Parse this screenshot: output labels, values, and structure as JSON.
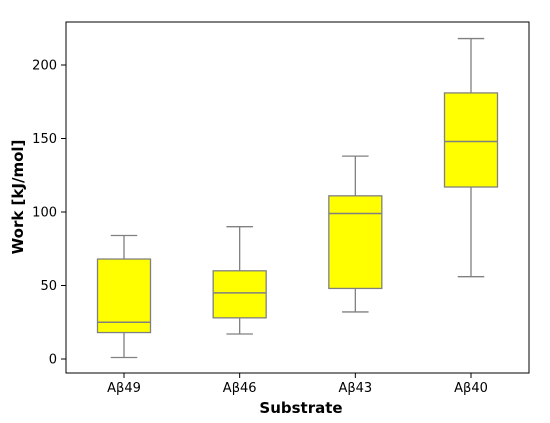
{
  "chart_data": {
    "type": "box",
    "categories": [
      "Aβ49",
      "Aβ46",
      "Aβ43",
      "Aβ40"
    ],
    "boxes": [
      {
        "whisker_low": 1,
        "q1": 18,
        "median": 25,
        "q3": 68,
        "whisker_high": 84
      },
      {
        "whisker_low": 17,
        "q1": 28,
        "median": 45,
        "q3": 60,
        "whisker_high": 90
      },
      {
        "whisker_low": 32,
        "q1": 48,
        "median": 99,
        "q3": 111,
        "whisker_high": 138
      },
      {
        "whisker_low": 56,
        "q1": 117,
        "median": 148,
        "q3": 181,
        "whisker_high": 218
      }
    ],
    "xlabel": "Substrate",
    "ylabel": "Work [kJ/mol]",
    "ylim": [
      -10,
      230
    ],
    "yticks": [
      0,
      50,
      100,
      150,
      200
    ],
    "box_color": "#ffff00",
    "line_color": "#808080",
    "grid": false
  }
}
